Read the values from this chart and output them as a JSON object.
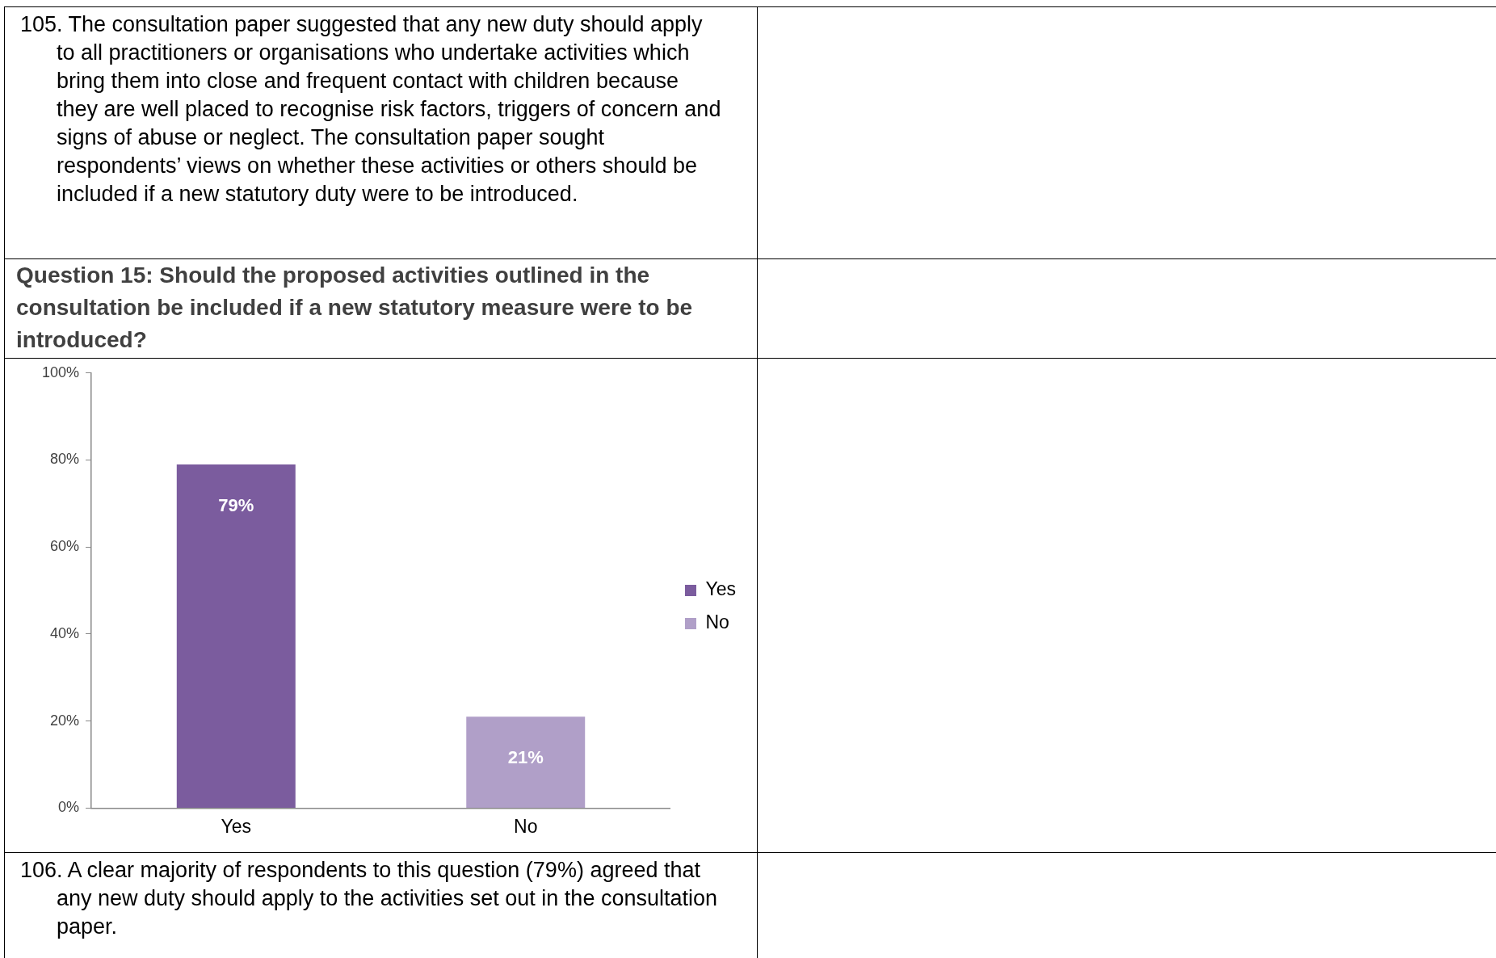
{
  "chart_data": {
    "type": "bar",
    "title": "Question 15: Should the proposed activities outlined in the consultation be included if a new statutory measure were to be introduced?",
    "annotations": [
      "105. The consultation paper suggested that any new duty should apply to all practitioners or organisations who undertake activities which bring them into close and frequent contact with children because they are well placed to recognise risk factors, triggers of concern and signs of abuse or neglect. The consultation paper sought respondents’ views on whether these activities or others should be included if a new statutory duty were to be introduced.",
      "106. A clear majority of respondents to this question (79%) agreed that any new duty should apply to the activities set out in the consultation paper."
    ],
    "categories": [
      "Yes",
      "No"
    ],
    "series": [
      {
        "name": "Yes",
        "color": "#7b5c9e",
        "values": [
          79,
          null
        ],
        "value_labels": [
          "79%",
          null
        ]
      },
      {
        "name": "No",
        "color": "#b09fc8",
        "values": [
          null,
          21
        ],
        "value_labels": [
          null,
          "21%"
        ]
      }
    ],
    "ylim": [
      0,
      100
    ],
    "yticks": [
      {
        "value": 0,
        "label": "0%"
      },
      {
        "value": 20,
        "label": "20%"
      },
      {
        "value": 40,
        "label": "40%"
      },
      {
        "value": 60,
        "label": "60%"
      },
      {
        "value": 80,
        "label": "80%"
      },
      {
        "value": 100,
        "label": "100%"
      }
    ],
    "grid": false,
    "legend": "right"
  }
}
